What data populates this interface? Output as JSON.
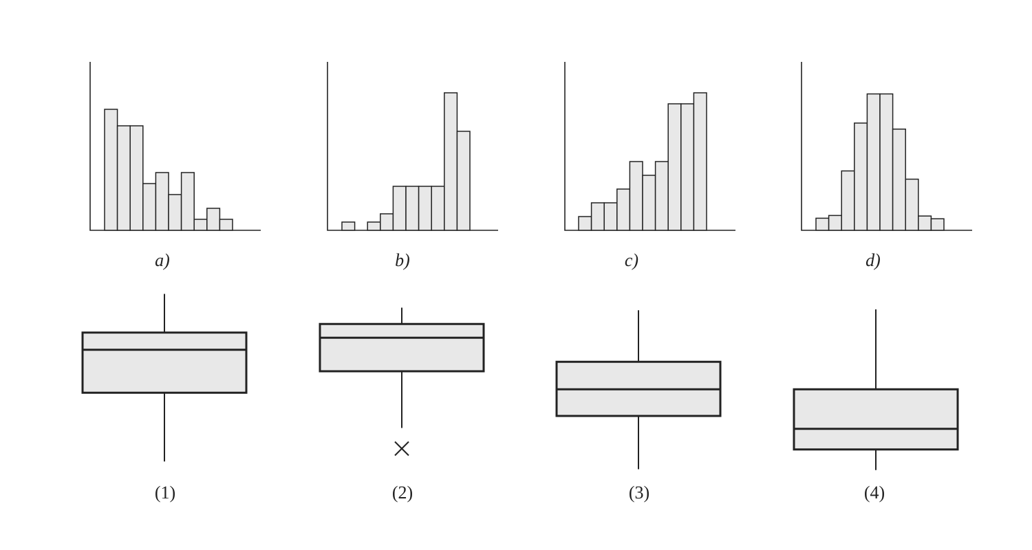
{
  "chart_data": [
    {
      "type": "bar",
      "label": "a)",
      "values": [
        11,
        9.5,
        9.5,
        4.25,
        5.25,
        3.25,
        5.25,
        1,
        2,
        1
      ]
    },
    {
      "type": "bar",
      "label": "b)",
      "values": [
        0.75,
        0,
        0.75,
        1.5,
        4,
        4,
        4,
        4,
        12.5,
        9
      ]
    },
    {
      "type": "bar",
      "label": "c)",
      "values": [
        1.25,
        2.5,
        2.5,
        3.75,
        6.25,
        5,
        6.25,
        11.5,
        11.5,
        12.5
      ]
    },
    {
      "type": "bar",
      "label": "d)",
      "values": [
        1.1,
        1.35,
        5.4,
        9.75,
        12.4,
        12.4,
        9.2,
        4.65,
        1.3,
        1.05
      ]
    },
    {
      "type": "boxplot",
      "label": "(1)",
      "whisker_high": 9.5,
      "q3": 7.25,
      "median": 6.25,
      "q1": 3.75,
      "whisker_low": -0.25,
      "outliers": []
    },
    {
      "type": "boxplot",
      "label": "(2)",
      "whisker_high": 8.7,
      "q3": 7.75,
      "median": 6.95,
      "q1": 5.0,
      "whisker_low": 1.7,
      "outliers": [
        0.5
      ]
    },
    {
      "type": "boxplot",
      "label": "(3)",
      "whisker_high": 8.55,
      "q3": 5.55,
      "median": 3.95,
      "q1": 2.4,
      "whisker_low": -0.7,
      "outliers": []
    },
    {
      "type": "boxplot",
      "label": "(4)",
      "whisker_high": 8.6,
      "q3": 3.95,
      "median": 1.65,
      "q1": 0.45,
      "whisker_low": -0.75,
      "outliers": []
    }
  ]
}
